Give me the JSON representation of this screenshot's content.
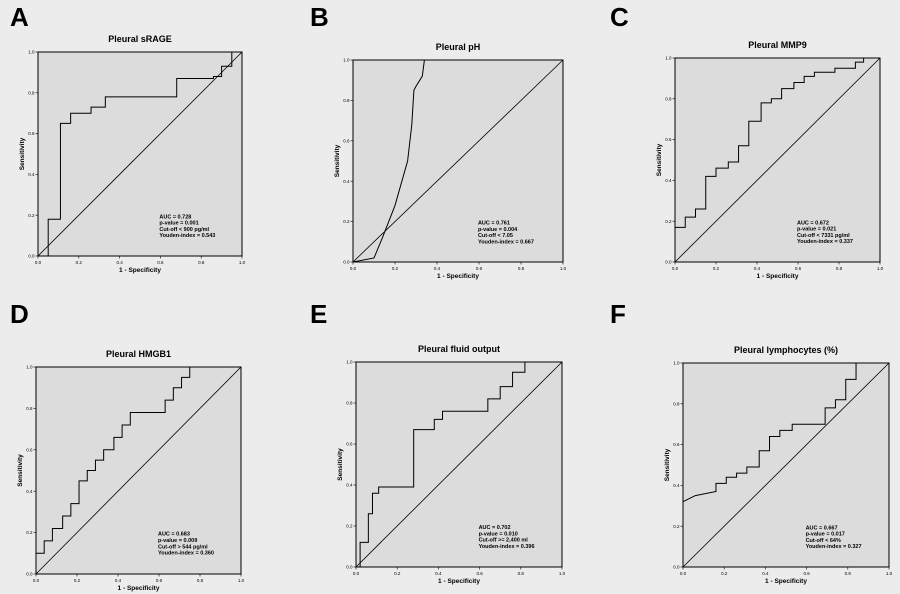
{
  "figure": {
    "panels": [
      {
        "letter": "A",
        "title": "Pleural sRAGE",
        "xlabel": "1 - Specificity",
        "ylabel": "Sensitivity",
        "stats": [
          "AUC = 0.728",
          "p-value = 0.001",
          "Cut-off < 900 pg/ml",
          "Youden-index = 0.543"
        ]
      },
      {
        "letter": "B",
        "title": "Pleural pH",
        "xlabel": "1 - Specificity",
        "ylabel": "Sensitivity",
        "stats": [
          "AUC = 0.761",
          "p-value = 0.004",
          "Cut-off < 7.05",
          "Youden-index = 0.667"
        ]
      },
      {
        "letter": "C",
        "title": "Pleural MMP9",
        "xlabel": "1 - Specificity",
        "ylabel": "Sensitivity",
        "stats": [
          "AUC = 0.672",
          "p-value = 0.021",
          "Cut-off < 7331 pg/ml",
          "Youden-index = 0.337"
        ]
      },
      {
        "letter": "D",
        "title": "Pleural HMGB1",
        "xlabel": "1 - Specificity",
        "ylabel": "Sensitivity",
        "stats": [
          "AUC = 0.683",
          "p-value = 0.009",
          "Cut-off > 544 pg/ml",
          "Youden-index = 0.360"
        ]
      },
      {
        "letter": "E",
        "title": "Pleural fluid output",
        "xlabel": "1 - Specificity",
        "ylabel": "Sensitivity",
        "stats": [
          "AUC = 0.702",
          "p-value = 0.010",
          "Cut-off >= 2,400 ml",
          "Youden-index = 0.396"
        ]
      },
      {
        "letter": "F",
        "title": "Pleural lymphocytes  (%)",
        "xlabel": "1 - Specificity",
        "ylabel": "Sensitivity",
        "stats": [
          "AUC = 0.667",
          "p-value = 0.017",
          "Cut-off < 64%",
          "Youden-index = 0.327"
        ]
      }
    ]
  },
  "chart_data": [
    {
      "type": "line",
      "title": "Pleural sRAGE",
      "xlabel": "1 - Specificity",
      "ylabel": "Sensitivity",
      "xlim": [
        0,
        1
      ],
      "ylim": [
        0,
        1
      ],
      "ticks": [
        "0.0",
        "0.2",
        "0.4",
        "0.6",
        "0.8",
        "1.0"
      ],
      "series": [
        {
          "name": "ROC",
          "x": [
            0,
            0.05,
            0.05,
            0.11,
            0.11,
            0.16,
            0.16,
            0.26,
            0.26,
            0.33,
            0.33,
            0.68,
            0.68,
            0.86,
            0.86,
            0.9,
            0.9,
            0.95,
            0.95,
            1.0
          ],
          "y": [
            0,
            0,
            0.18,
            0.18,
            0.65,
            0.65,
            0.7,
            0.7,
            0.73,
            0.73,
            0.78,
            0.78,
            0.87,
            0.87,
            0.88,
            0.88,
            0.93,
            0.93,
            1.0,
            1.0
          ]
        },
        {
          "name": "Reference",
          "x": [
            0,
            1
          ],
          "y": [
            0,
            1
          ]
        }
      ]
    },
    {
      "type": "line",
      "title": "Pleural pH",
      "xlabel": "1 - Specificity",
      "ylabel": "Sensitivity",
      "xlim": [
        0,
        1
      ],
      "ylim": [
        0,
        1
      ],
      "ticks": [
        "0.0",
        "0.2",
        "0.4",
        "0.6",
        "0.8",
        "1.0"
      ],
      "series": [
        {
          "name": "ROC",
          "x": [
            0,
            0.1,
            0.14,
            0.2,
            0.26,
            0.28,
            0.29,
            0.3,
            0.33,
            0.34
          ],
          "y": [
            0,
            0.02,
            0.12,
            0.28,
            0.5,
            0.68,
            0.85,
            0.87,
            0.92,
            1.0
          ]
        },
        {
          "name": "Reference",
          "x": [
            0,
            1
          ],
          "y": [
            0,
            1
          ]
        }
      ]
    },
    {
      "type": "line",
      "title": "Pleural MMP9",
      "xlabel": "1 - Specificity",
      "ylabel": "Sensitivity",
      "xlim": [
        0,
        1
      ],
      "ylim": [
        0,
        1
      ],
      "ticks": [
        "0.0",
        "0.2",
        "0.4",
        "0.6",
        "0.8",
        "1.0"
      ],
      "series": [
        {
          "name": "ROC",
          "x": [
            0,
            0,
            0.05,
            0.05,
            0.1,
            0.1,
            0.15,
            0.15,
            0.2,
            0.2,
            0.26,
            0.26,
            0.31,
            0.31,
            0.36,
            0.36,
            0.42,
            0.42,
            0.47,
            0.47,
            0.52,
            0.52,
            0.58,
            0.58,
            0.63,
            0.63,
            0.68,
            0.68,
            0.78,
            0.78,
            0.88,
            0.88,
            0.92,
            0.92,
            1.0
          ],
          "y": [
            0,
            0.17,
            0.17,
            0.22,
            0.22,
            0.26,
            0.26,
            0.42,
            0.42,
            0.46,
            0.46,
            0.49,
            0.49,
            0.57,
            0.57,
            0.69,
            0.69,
            0.78,
            0.78,
            0.8,
            0.8,
            0.85,
            0.85,
            0.88,
            0.88,
            0.91,
            0.91,
            0.93,
            0.93,
            0.95,
            0.95,
            0.98,
            0.98,
            1.0,
            1.0
          ]
        },
        {
          "name": "Reference",
          "x": [
            0,
            1
          ],
          "y": [
            0,
            1
          ]
        }
      ]
    },
    {
      "type": "line",
      "title": "Pleural HMGB1",
      "xlabel": "1 - Specificity",
      "ylabel": "Sensitivity",
      "xlim": [
        0,
        1
      ],
      "ylim": [
        0,
        1
      ],
      "ticks": [
        "0.0",
        "0.2",
        "0.4",
        "0.6",
        "0.8",
        "1.0"
      ],
      "series": [
        {
          "name": "ROC",
          "x": [
            0,
            0,
            0.04,
            0.04,
            0.08,
            0.08,
            0.13,
            0.13,
            0.17,
            0.17,
            0.21,
            0.21,
            0.25,
            0.25,
            0.29,
            0.29,
            0.33,
            0.33,
            0.38,
            0.38,
            0.42,
            0.42,
            0.46,
            0.46,
            0.63,
            0.63,
            0.67,
            0.67,
            0.71,
            0.71,
            0.75,
            0.75,
            0.79,
            0.79,
            1.0
          ],
          "y": [
            0,
            0.1,
            0.1,
            0.16,
            0.16,
            0.22,
            0.22,
            0.28,
            0.28,
            0.34,
            0.34,
            0.45,
            0.45,
            0.5,
            0.5,
            0.55,
            0.55,
            0.6,
            0.6,
            0.66,
            0.66,
            0.72,
            0.72,
            0.78,
            0.78,
            0.84,
            0.84,
            0.9,
            0.9,
            0.95,
            0.95,
            1.0,
            1.0,
            1.0,
            1.0
          ]
        },
        {
          "name": "Reference",
          "x": [
            0,
            1
          ],
          "y": [
            0,
            1
          ]
        }
      ]
    },
    {
      "type": "line",
      "title": "Pleural fluid output",
      "xlabel": "1 - Specificity",
      "ylabel": "Sensitivity",
      "xlim": [
        0,
        1
      ],
      "ylim": [
        0,
        1
      ],
      "ticks": [
        "0.0",
        "0.2",
        "0.4",
        "0.6",
        "0.8",
        "1.0"
      ],
      "series": [
        {
          "name": "ROC",
          "x": [
            0,
            0.02,
            0.02,
            0.06,
            0.06,
            0.08,
            0.08,
            0.11,
            0.11,
            0.28,
            0.28,
            0.38,
            0.38,
            0.42,
            0.42,
            0.64,
            0.64,
            0.7,
            0.7,
            0.76,
            0.76,
            0.82,
            0.82,
            1.0
          ],
          "y": [
            0,
            0,
            0.12,
            0.12,
            0.26,
            0.26,
            0.36,
            0.36,
            0.39,
            0.39,
            0.67,
            0.67,
            0.72,
            0.72,
            0.76,
            0.76,
            0.82,
            0.82,
            0.88,
            0.88,
            0.95,
            0.95,
            1.0,
            1.0
          ]
        },
        {
          "name": "Reference",
          "x": [
            0,
            1
          ],
          "y": [
            0,
            1
          ]
        }
      ]
    },
    {
      "type": "line",
      "title": "Pleural lymphocytes  (%)",
      "xlabel": "1 - Specificity",
      "ylabel": "Sensitivity",
      "xlim": [
        0,
        1
      ],
      "ylim": [
        0,
        1
      ],
      "ticks": [
        "0.0",
        "0.2",
        "0.4",
        "0.6",
        "0.8",
        "1.0"
      ],
      "series": [
        {
          "name": "ROC",
          "x": [
            0,
            0.06,
            0.16,
            0.16,
            0.21,
            0.21,
            0.26,
            0.26,
            0.31,
            0.31,
            0.37,
            0.37,
            0.42,
            0.42,
            0.47,
            0.47,
            0.53,
            0.53,
            0.69,
            0.69,
            0.74,
            0.74,
            0.79,
            0.79,
            0.84,
            0.84,
            1.0
          ],
          "y": [
            0.32,
            0.35,
            0.37,
            0.41,
            0.41,
            0.44,
            0.44,
            0.46,
            0.46,
            0.49,
            0.49,
            0.57,
            0.57,
            0.64,
            0.64,
            0.67,
            0.67,
            0.7,
            0.7,
            0.78,
            0.78,
            0.82,
            0.82,
            0.92,
            0.92,
            1.0,
            1.0
          ]
        },
        {
          "name": "Reference",
          "x": [
            0,
            1
          ],
          "y": [
            0,
            1
          ]
        }
      ]
    }
  ]
}
